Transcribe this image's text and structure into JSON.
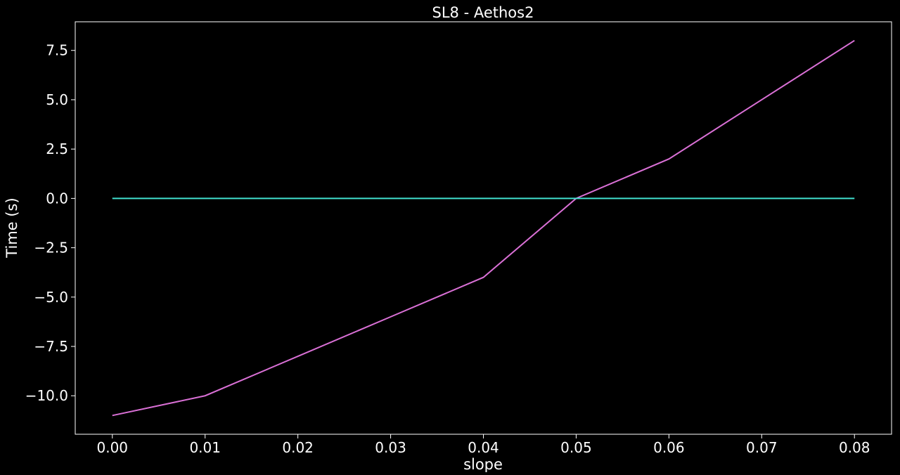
{
  "chart_data": {
    "type": "line",
    "title": "SL8 - Aethos2",
    "xlabel": "slope",
    "ylabel": "Time (s)",
    "xlim": [
      -0.004,
      0.084
    ],
    "ylim": [
      -11.95,
      8.95
    ],
    "x_ticks": [
      0.0,
      0.01,
      0.02,
      0.03,
      0.04,
      0.05,
      0.06,
      0.07,
      0.08
    ],
    "x_tick_labels": [
      "0.00",
      "0.01",
      "0.02",
      "0.03",
      "0.04",
      "0.05",
      "0.06",
      "0.07",
      "0.08"
    ],
    "y_ticks": [
      -10,
      -7.5,
      -5,
      -2.5,
      0,
      2.5,
      5,
      7.5
    ],
    "y_tick_labels": [
      "−10.0",
      "−7.5",
      "−5.0",
      "−2.5",
      "0.0",
      "2.5",
      "5.0",
      "7.5"
    ],
    "grid": false,
    "background": "#000000",
    "x": [
      0.0,
      0.01,
      0.02,
      0.03,
      0.04,
      0.05,
      0.06,
      0.07,
      0.08
    ],
    "series": [
      {
        "color": "#da70d6",
        "values": [
          -11,
          -10,
          -8,
          -6,
          -4,
          0,
          2,
          5,
          8
        ]
      },
      {
        "color": "#40e0d0",
        "values": [
          0,
          0,
          0,
          0,
          0,
          0,
          0,
          0,
          0
        ]
      }
    ]
  }
}
